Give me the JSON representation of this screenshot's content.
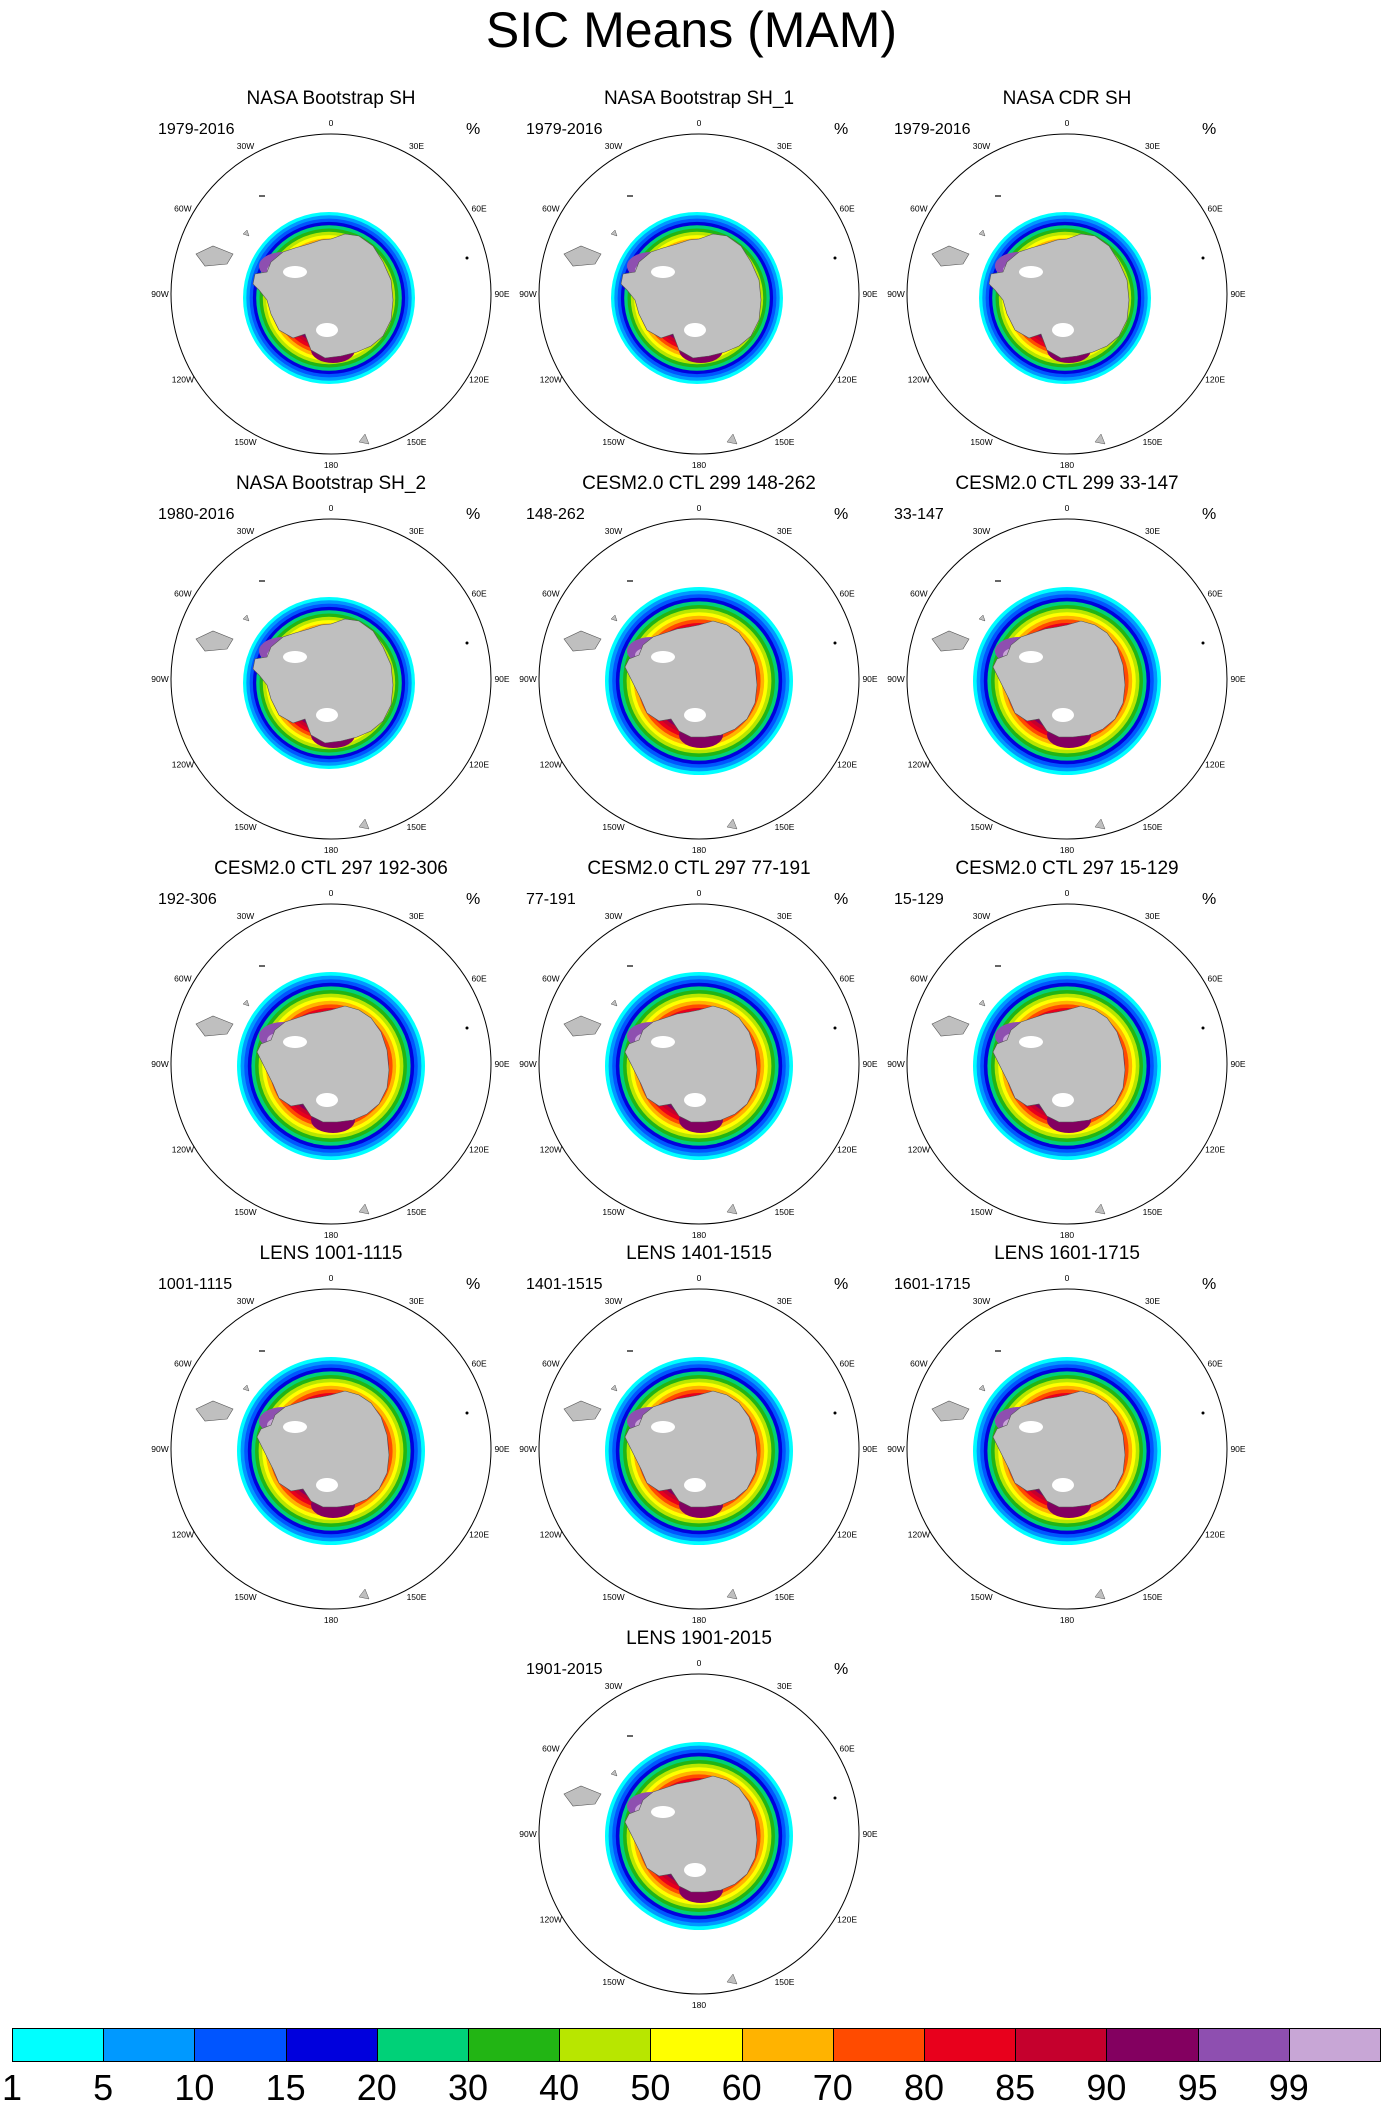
{
  "figure": {
    "title": "SIC Means (MAM)",
    "unit_label": "%"
  },
  "lon_labels": [
    "0",
    "30E",
    "60E",
    "90E",
    "120E",
    "150E",
    "180",
    "150W",
    "120W",
    "90W",
    "60W",
    "30W"
  ],
  "panels": [
    {
      "title": "NASA Bootstrap SH",
      "period": "1979-2016",
      "kind": "obs"
    },
    {
      "title": "NASA Bootstrap SH_1",
      "period": "1979-2016",
      "kind": "obs"
    },
    {
      "title": "NASA CDR SH",
      "period": "1979-2016",
      "kind": "obs"
    },
    {
      "title": "NASA Bootstrap SH_2",
      "period": "1980-2016",
      "kind": "obs"
    },
    {
      "title": "CESM2.0 CTL 299 148-262",
      "period": "148-262",
      "kind": "model"
    },
    {
      "title": "CESM2.0 CTL 299 33-147",
      "period": "33-147",
      "kind": "model"
    },
    {
      "title": "CESM2.0 CTL 297 192-306",
      "period": "192-306",
      "kind": "model"
    },
    {
      "title": "CESM2.0 CTL 297 77-191",
      "period": "77-191",
      "kind": "model"
    },
    {
      "title": "CESM2.0 CTL 297 15-129",
      "period": "15-129",
      "kind": "model"
    },
    {
      "title": "LENS 1001-1115",
      "period": "1001-1115",
      "kind": "lens"
    },
    {
      "title": "LENS 1401-1515",
      "period": "1401-1515",
      "kind": "lens"
    },
    {
      "title": "LENS 1601-1715",
      "period": "1601-1715",
      "kind": "lens"
    },
    {
      "title": "LENS 1901-2015",
      "period": "1901-2015",
      "kind": "lens"
    }
  ],
  "colorbar": {
    "labels": [
      "1",
      "5",
      "10",
      "15",
      "20",
      "30",
      "40",
      "50",
      "60",
      "70",
      "80",
      "85",
      "90",
      "95",
      "99"
    ],
    "colors": [
      "#00ffff",
      "#0099ff",
      "#0055ff",
      "#0000dd",
      "#00d178",
      "#22b514",
      "#b8e600",
      "#ffff00",
      "#ffb300",
      "#ff4b00",
      "#e8001c",
      "#c5002d",
      "#830060",
      "#8e4fb0",
      "#c8a6d6"
    ]
  },
  "colors": {
    "land": "#bfbfbf",
    "ocean": "#ffffff",
    "outline": "#000000"
  },
  "chart_data": {
    "type": "heatmap",
    "title": "SIC Means (MAM)",
    "variable": "Sea ice concentration (%)",
    "projection": "south-polar stereographic",
    "contour_levels": [
      1,
      5,
      10,
      15,
      20,
      30,
      40,
      50,
      60,
      70,
      80,
      85,
      90,
      95,
      99
    ],
    "panels": [
      "NASA Bootstrap SH",
      "NASA Bootstrap SH_1",
      "NASA CDR SH",
      "NASA Bootstrap SH_2",
      "CESM2.0 CTL 299 148-262",
      "CESM2.0 CTL 299 33-147",
      "CESM2.0 CTL 297 192-306",
      "CESM2.0 CTL 297 77-191",
      "CESM2.0 CTL 297 15-129",
      "LENS 1001-1115",
      "LENS 1401-1515",
      "LENS 1601-1715",
      "LENS 1901-2015"
    ]
  }
}
